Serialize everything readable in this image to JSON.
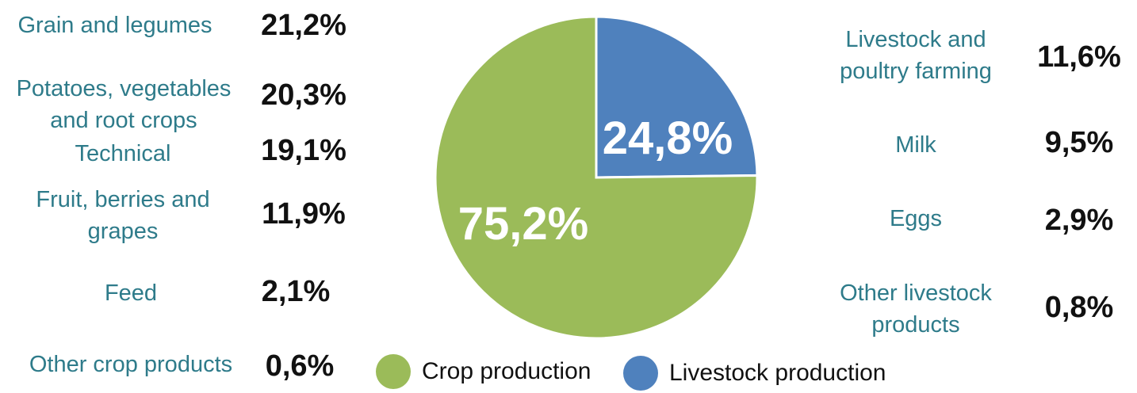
{
  "chart_data": {
    "type": "pie",
    "title": "",
    "slices": [
      {
        "name": "Crop production",
        "value": 75.2,
        "label": "75,2%",
        "color": "#9bbb59"
      },
      {
        "name": "Livestock production",
        "value": 24.8,
        "label": "24,8%",
        "color": "#4f81bd"
      }
    ],
    "crop_breakdown": [
      {
        "name": "Grain and legumes",
        "value": 21.2,
        "label": "21,2%"
      },
      {
        "name": "Potatoes, vegetables and root crops",
        "value": 20.3,
        "label": "20,3%"
      },
      {
        "name": "Technical",
        "value": 19.1,
        "label": "19,1%"
      },
      {
        "name": "Fruit, berries and grapes",
        "value": 11.9,
        "label": "11,9%"
      },
      {
        "name": "Feed",
        "value": 2.1,
        "label": "2,1%"
      },
      {
        "name": "Other crop products",
        "value": 0.6,
        "label": "0,6%"
      }
    ],
    "livestock_breakdown": [
      {
        "name": "Livestock and poultry farming",
        "value": 11.6,
        "label": "11,6%"
      },
      {
        "name": "Milk",
        "value": 9.5,
        "label": "9,5%"
      },
      {
        "name": "Eggs",
        "value": 2.9,
        "label": "2,9%"
      },
      {
        "name": "Other livestock products",
        "value": 0.8,
        "label": "0,8%"
      }
    ],
    "legend": {
      "placement": "bottom-center",
      "items": [
        {
          "name": "Crop production",
          "color": "#9bbb59"
        },
        {
          "name": "Livestock production",
          "color": "#4f81bd"
        }
      ]
    }
  }
}
